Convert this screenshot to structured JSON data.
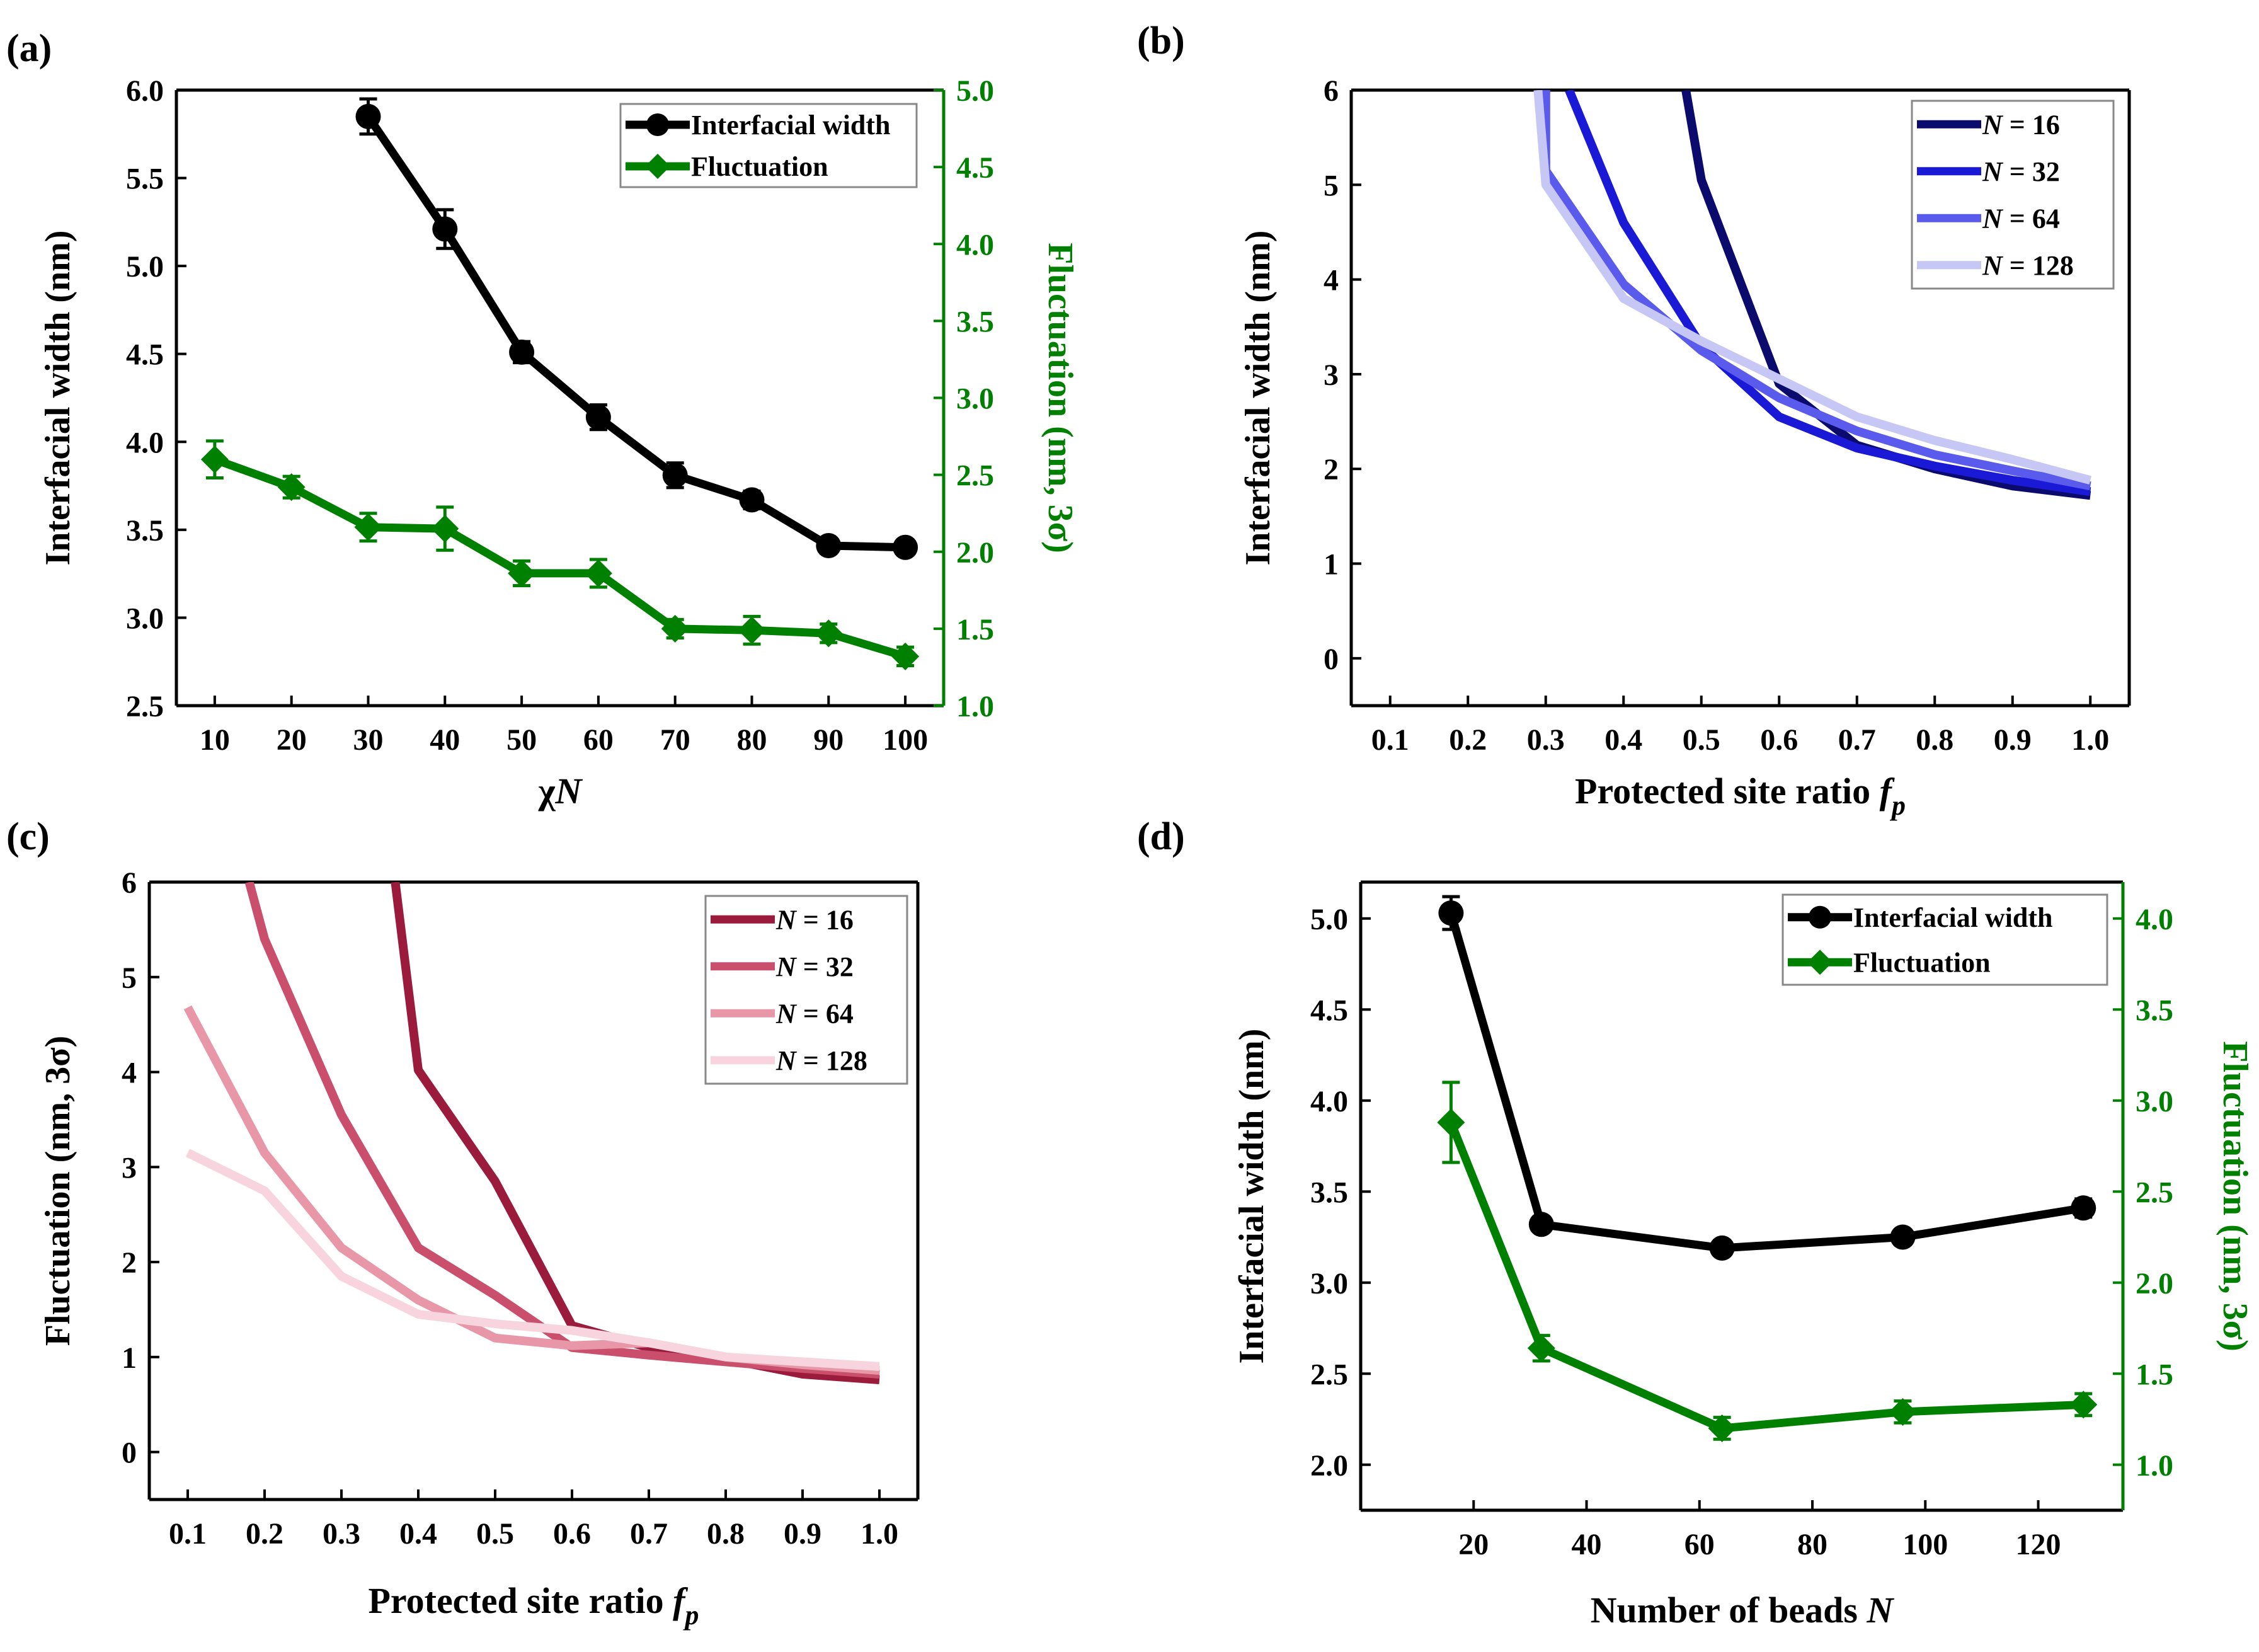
{
  "colors": {
    "black": "#000000",
    "green": "#008000",
    "blue_16": "#0b0b6e",
    "blue_32": "#1a1ad6",
    "blue_64": "#5a5aec",
    "blue_128": "#c7c7f5",
    "red_16": "#9b1b3d",
    "red_32": "#c94f6d",
    "red_64": "#e897a9",
    "red_128": "#f8d5de"
  },
  "chart_data": [
    {
      "panel": "(a)",
      "type": "line",
      "xlabel_main": "χ",
      "xlabel_italic": "N",
      "ylabel": "Interfacial width (nm)",
      "y2label": "Fluctuation (nm, 3σ)",
      "xlim": [
        5,
        105
      ],
      "ylim": [
        2.5,
        6.0
      ],
      "y2lim": [
        1.0,
        5.0
      ],
      "xticks": [
        10,
        20,
        30,
        40,
        50,
        60,
        70,
        80,
        90,
        100
      ],
      "yticks": [
        "2.5",
        "3.0",
        "3.5",
        "4.0",
        "4.5",
        "5.0",
        "5.5",
        "6.0"
      ],
      "y2ticks": [
        "1.0",
        "1.5",
        "2.0",
        "2.5",
        "3.0",
        "3.5",
        "4.0",
        "4.5",
        "5.0"
      ],
      "legend": [
        "Interfacial width",
        "Fluctuation"
      ],
      "legend_position": "top-right",
      "series": [
        {
          "name": "Interfacial width",
          "axis": "left",
          "x": [
            30,
            40,
            50,
            60,
            70,
            80,
            90,
            100
          ],
          "values": [
            5.85,
            5.21,
            4.51,
            4.14,
            3.81,
            3.67,
            3.41,
            3.4
          ],
          "err": [
            0.1,
            0.11,
            0.06,
            0.07,
            0.07,
            0.05,
            0.04,
            0.04
          ]
        },
        {
          "name": "Fluctuation",
          "axis": "right",
          "x": [
            10,
            20,
            30,
            40,
            50,
            60,
            70,
            80,
            90,
            100
          ],
          "values": [
            2.6,
            2.42,
            2.16,
            2.15,
            1.86,
            1.86,
            1.5,
            1.49,
            1.47,
            1.32
          ],
          "err": [
            0.12,
            0.07,
            0.09,
            0.14,
            0.08,
            0.09,
            0.06,
            0.09,
            0.06,
            0.06
          ]
        }
      ]
    },
    {
      "panel": "(b)",
      "type": "line",
      "xlabel_main": "Protected site ratio ",
      "xlabel_italic": "f",
      "xlabel_sub": "p",
      "ylabel": "Interfacial width (nm)",
      "xlim": [
        0.05,
        1.05
      ],
      "ylim": [
        -0.5,
        6.0
      ],
      "xticks": [
        "0.1",
        "0.2",
        "0.3",
        "0.4",
        "0.5",
        "0.6",
        "0.7",
        "0.8",
        "0.9",
        "1.0"
      ],
      "yticks": [
        "0",
        "1",
        "2",
        "3",
        "4",
        "5",
        "6"
      ],
      "legend": [
        {
          "prefix": "N",
          "label": " = 16"
        },
        {
          "prefix": "N",
          "label": " = 32"
        },
        {
          "prefix": "N",
          "label": " = 64"
        },
        {
          "prefix": "N",
          "label": " = 128"
        }
      ],
      "legend_position": "top-right",
      "series": [
        {
          "name": "N = 16",
          "x": [
            0.48,
            0.5,
            0.6,
            0.7,
            0.8,
            0.9,
            1.0
          ],
          "values": [
            6.0,
            5.05,
            2.9,
            2.25,
            2.0,
            1.82,
            1.72
          ]
        },
        {
          "name": "N = 32",
          "x": [
            0.33,
            0.4,
            0.5,
            0.6,
            0.7,
            0.8,
            0.9,
            1.0
          ],
          "values": [
            6.0,
            4.6,
            3.3,
            2.55,
            2.22,
            2.03,
            1.88,
            1.76
          ]
        },
        {
          "name": "N = 64",
          "x": [
            0.3,
            0.3,
            0.4,
            0.5,
            0.6,
            0.7,
            0.8,
            0.9,
            1.0
          ],
          "values": [
            6.0,
            5.15,
            3.95,
            3.25,
            2.75,
            2.4,
            2.15,
            1.98,
            1.82
          ]
        },
        {
          "name": "N = 128",
          "x": [
            0.29,
            0.3,
            0.4,
            0.5,
            0.6,
            0.7,
            0.8,
            0.9,
            1.0
          ],
          "values": [
            6.0,
            5.0,
            3.8,
            3.35,
            2.95,
            2.55,
            2.3,
            2.1,
            1.88
          ]
        }
      ]
    },
    {
      "panel": "(c)",
      "type": "line",
      "xlabel_main": "Protected site ratio ",
      "xlabel_italic": "f",
      "xlabel_sub": "p",
      "ylabel": "Fluctuation (nm, 3σ)",
      "xlim": [
        0.05,
        1.05
      ],
      "ylim": [
        -0.5,
        6.0
      ],
      "xticks": [
        "0.1",
        "0.2",
        "0.3",
        "0.4",
        "0.5",
        "0.6",
        "0.7",
        "0.8",
        "0.9",
        "1.0"
      ],
      "yticks": [
        "0",
        "1",
        "2",
        "3",
        "4",
        "5",
        "6"
      ],
      "legend": [
        {
          "prefix": "N",
          "label": " = 16"
        },
        {
          "prefix": "N",
          "label": " = 32"
        },
        {
          "prefix": "N",
          "label": " = 64"
        },
        {
          "prefix": "N",
          "label": " = 128"
        }
      ],
      "legend_position": "top-right",
      "series": [
        {
          "name": "N = 16",
          "x": [
            0.37,
            0.4,
            0.5,
            0.6,
            0.7,
            0.8,
            0.9,
            1.0
          ],
          "values": [
            6.0,
            4.02,
            2.85,
            1.33,
            1.1,
            0.98,
            0.82,
            0.76
          ]
        },
        {
          "name": "N = 32",
          "x": [
            0.18,
            0.2,
            0.3,
            0.4,
            0.5,
            0.6,
            0.7,
            0.8,
            0.9,
            1.0
          ],
          "values": [
            6.0,
            5.4,
            3.55,
            2.15,
            1.65,
            1.1,
            1.02,
            0.95,
            0.88,
            0.82
          ]
        },
        {
          "name": "N = 64",
          "x": [
            0.1,
            0.2,
            0.3,
            0.4,
            0.5,
            0.6,
            0.7,
            0.8,
            0.9,
            1.0
          ],
          "values": [
            4.68,
            3.15,
            2.15,
            1.6,
            1.2,
            1.12,
            1.15,
            1.0,
            0.92,
            0.86
          ]
        },
        {
          "name": "N = 128",
          "x": [
            0.1,
            0.2,
            0.3,
            0.4,
            0.5,
            0.6,
            0.7,
            0.8,
            0.9,
            1.0
          ],
          "values": [
            3.15,
            2.75,
            1.85,
            1.45,
            1.35,
            1.28,
            1.15,
            1.0,
            0.95,
            0.9
          ]
        }
      ]
    },
    {
      "panel": "(d)",
      "type": "line",
      "xlabel_main": "Number of beads ",
      "xlabel_italic": "N",
      "ylabel": "Interfacial width (nm)",
      "y2label": "Fluctuation (nm, 3σ)",
      "xlim": [
        0,
        135
      ],
      "ylim": [
        1.75,
        5.2
      ],
      "y2lim": [
        0.75,
        4.2
      ],
      "xticks": [
        20,
        40,
        60,
        80,
        100,
        120
      ],
      "yticks": [
        "2.0",
        "2.5",
        "3.0",
        "3.5",
        "4.0",
        "4.5",
        "5.0"
      ],
      "y2ticks": [
        "1.0",
        "1.5",
        "2.0",
        "2.5",
        "3.0",
        "3.5",
        "4.0"
      ],
      "legend": [
        "Interfacial width",
        "Fluctuation"
      ],
      "legend_position": "top-right",
      "series": [
        {
          "name": "Interfacial width",
          "axis": "left",
          "x": [
            16,
            32,
            64,
            96,
            128
          ],
          "values": [
            5.03,
            3.32,
            3.19,
            3.25,
            3.41
          ],
          "err": [
            0.09,
            0.04,
            0.04,
            0.04,
            0.05
          ]
        },
        {
          "name": "Fluctuation",
          "axis": "right",
          "x": [
            16,
            32,
            64,
            96,
            128
          ],
          "values": [
            2.88,
            1.64,
            1.2,
            1.29,
            1.33
          ],
          "err": [
            0.22,
            0.07,
            0.06,
            0.06,
            0.06
          ]
        }
      ]
    }
  ]
}
